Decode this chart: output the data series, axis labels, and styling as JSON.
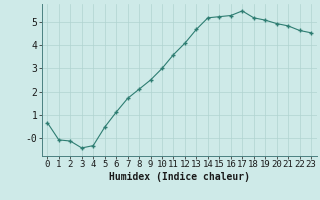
{
  "x": [
    0,
    1,
    2,
    3,
    4,
    5,
    6,
    7,
    8,
    9,
    10,
    11,
    12,
    13,
    14,
    15,
    16,
    17,
    18,
    19,
    20,
    21,
    22,
    23
  ],
  "y": [
    0.65,
    -0.1,
    -0.15,
    -0.45,
    -0.35,
    0.45,
    1.1,
    1.7,
    2.1,
    2.5,
    3.0,
    3.6,
    4.1,
    4.7,
    5.2,
    5.25,
    5.3,
    5.5,
    5.2,
    5.1,
    4.95,
    4.85,
    4.65,
    4.55
  ],
  "xlabel": "Humidex (Indice chaleur)",
  "ylim": [
    -0.8,
    5.8
  ],
  "xlim": [
    -0.5,
    23.5
  ],
  "xtick_labels": [
    "0",
    "1",
    "2",
    "3",
    "4",
    "5",
    "6",
    "7",
    "8",
    "9",
    "10",
    "11",
    "12",
    "13",
    "14",
    "15",
    "16",
    "17",
    "18",
    "19",
    "20",
    "21",
    "22",
    "23"
  ],
  "ytick_labels": [
    "-0",
    "1",
    "2",
    "3",
    "4",
    "5"
  ],
  "ytick_vals": [
    0,
    1,
    2,
    3,
    4,
    5
  ],
  "line_color": "#2e7d72",
  "marker": "+",
  "bg_color": "#ceeae8",
  "grid_color": "#b0d4d0",
  "xlabel_fontsize": 7,
  "tick_fontsize": 6.5
}
